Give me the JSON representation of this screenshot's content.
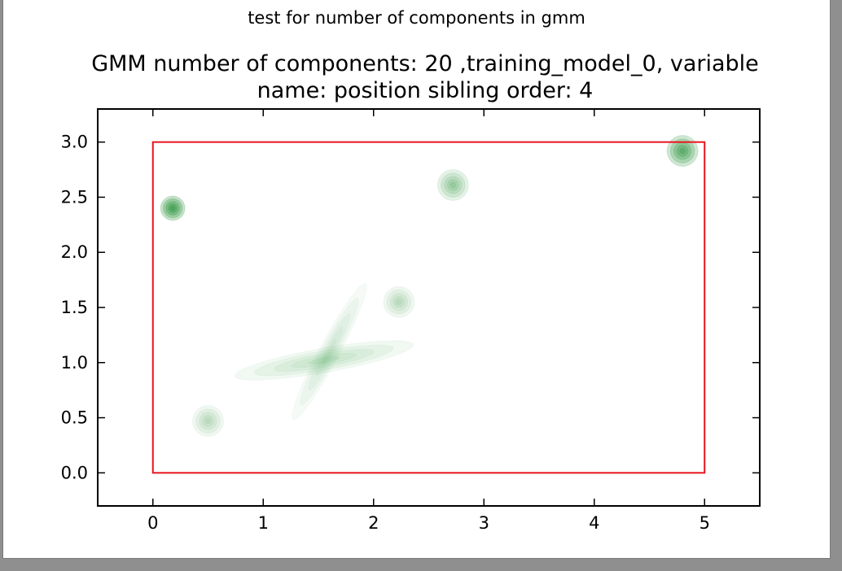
{
  "figure": {
    "suptitle": "test for number of components in gmm",
    "title_line1": "GMM number of components: 20 ,training_model_0, variable",
    "title_line2": "name: position sibling order: 4"
  },
  "chart_data": {
    "type": "scatter",
    "title": "GMM number of components: 20 ,training_model_0, variable name: position sibling order: 4",
    "xlabel": "",
    "ylabel": "",
    "xlim": [
      -0.5,
      5.5
    ],
    "ylim": [
      -0.3,
      3.3
    ],
    "xticks": [
      0,
      1,
      2,
      3,
      4,
      5
    ],
    "xtick_labels": [
      "0",
      "1",
      "2",
      "3",
      "4",
      "5"
    ],
    "yticks": [
      0.0,
      0.5,
      1.0,
      1.5,
      2.0,
      2.5,
      3.0
    ],
    "ytick_labels": [
      "0.0",
      "0.5",
      "1.0",
      "1.5",
      "2.0",
      "2.5",
      "3.0"
    ],
    "grid": false,
    "boundary_rectangle": {
      "x0": 0,
      "y0": 0,
      "x1": 5,
      "y1": 3,
      "color": "#e8141e"
    },
    "ellipse_color": "#1a8a2a",
    "components": [
      {
        "cx": 0.18,
        "cy": 2.4,
        "rx": 0.11,
        "ry": 0.11,
        "angle": 0,
        "alpha": 0.55
      },
      {
        "cx": 2.72,
        "cy": 2.61,
        "rx": 0.14,
        "ry": 0.14,
        "angle": 0,
        "alpha": 0.25
      },
      {
        "cx": 4.8,
        "cy": 2.92,
        "rx": 0.14,
        "ry": 0.14,
        "angle": 0,
        "alpha": 0.45
      },
      {
        "cx": 2.23,
        "cy": 1.55,
        "rx": 0.14,
        "ry": 0.14,
        "angle": 0,
        "alpha": 0.15
      },
      {
        "cx": 0.5,
        "cy": 0.47,
        "rx": 0.14,
        "ry": 0.14,
        "angle": 0,
        "alpha": 0.15
      },
      {
        "cx": 1.55,
        "cy": 1.02,
        "rx": 0.82,
        "ry": 0.11,
        "angle": -10,
        "alpha": 0.12
      },
      {
        "cx": 1.6,
        "cy": 1.1,
        "rx": 0.7,
        "ry": 0.09,
        "angle": -62,
        "alpha": 0.1
      }
    ]
  }
}
